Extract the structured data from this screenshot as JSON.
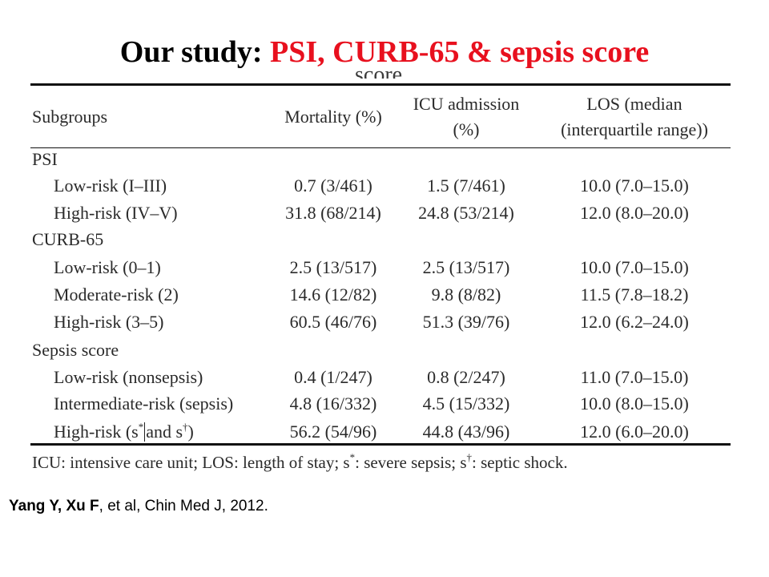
{
  "title": {
    "prefix": "Our study: ",
    "highlight": "PSI, CURB-65 & sepsis score"
  },
  "clipped_caption": "score",
  "table": {
    "headers": {
      "subgroups": "Subgroups",
      "mortality": "Mortality (%)",
      "icu_line1": "ICU admission",
      "icu_line2": "(%)",
      "los_line1": "LOS (median",
      "los_line2": "(interquartile range))"
    },
    "sections": [
      {
        "name": "PSI",
        "rows": [
          {
            "label": "Low-risk (I–III)",
            "mortality": "0.7 (3/461)",
            "icu": "1.5 (7/461)",
            "los": "10.0 (7.0–15.0)"
          },
          {
            "label": "High-risk (IV–V)",
            "mortality": "31.8 (68/214)",
            "icu": "24.8 (53/214)",
            "los": "12.0 (8.0–20.0)"
          }
        ]
      },
      {
        "name": "CURB-65",
        "rows": [
          {
            "label": "Low-risk (0–1)",
            "mortality": "2.5 (13/517)",
            "icu": "2.5 (13/517)",
            "los": "10.0 (7.0–15.0)"
          },
          {
            "label": "Moderate-risk (2)",
            "mortality": "14.6 (12/82)",
            "icu": "9.8 (8/82)",
            "los": "11.5 (7.8–18.2)"
          },
          {
            "label": "High-risk (3–5)",
            "mortality": "60.5 (46/76)",
            "icu": "51.3 (39/76)",
            "los": "12.0 (6.2–24.0)"
          }
        ]
      },
      {
        "name": "Sepsis score",
        "rows": [
          {
            "label": "Low-risk (nonsepsis)",
            "mortality": "0.4 (1/247)",
            "icu": "0.8 (2/247)",
            "los": "11.0 (7.0–15.0)"
          },
          {
            "label": "Intermediate-risk (sepsis)",
            "mortality": "4.8 (16/332)",
            "icu": "4.5 (15/332)",
            "los": "10.0 (8.0–15.0)"
          }
        ],
        "last_row": {
          "label_pre": "High-risk (s",
          "sup1": "*",
          "label_mid": "and s",
          "sup2": "†",
          "label_post": ")",
          "mortality": "56.2 (54/96)",
          "icu": "44.8 (43/96)",
          "los": "12.0 (6.0–20.0)"
        }
      }
    ]
  },
  "footnote": {
    "part1": "ICU: intensive care unit; LOS: length of stay; s",
    "sup1": "*",
    "part2": ": severe sepsis; s",
    "sup2": "†",
    "part3": ": septic shock."
  },
  "citation": {
    "authors_bold": "Yang Y, Xu F",
    "rest": ", et al, Chin Med J, 2012."
  },
  "colors": {
    "title_black": "#000000",
    "title_red": "#e8101e",
    "table_text": "#2a2a2a"
  }
}
